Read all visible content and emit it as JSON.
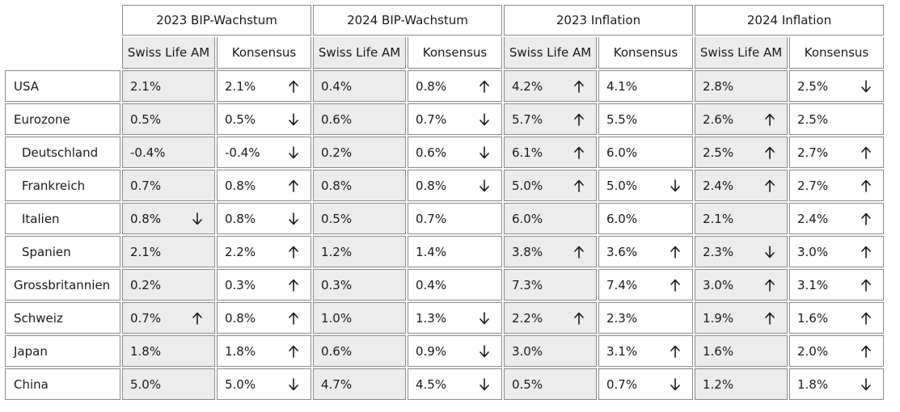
{
  "groups": [
    "2023 BIP-Wachstum",
    "2024 BIP-Wachstum",
    "2023 Inflation",
    "2024 Inflation"
  ],
  "subheaders": [
    "Swiss Life AM",
    "Konsensus"
  ],
  "rows": [
    {
      "label": "USA",
      "indent": false,
      "cells": [
        {
          "v": "2.1%",
          "a": ""
        },
        {
          "v": "2.1%",
          "a": "up"
        },
        {
          "v": "0.4%",
          "a": ""
        },
        {
          "v": "0.8%",
          "a": "up"
        },
        {
          "v": "4.2%",
          "a": "up"
        },
        {
          "v": "4.1%",
          "a": ""
        },
        {
          "v": "2.8%",
          "a": ""
        },
        {
          "v": "2.5%",
          "a": "down"
        }
      ]
    },
    {
      "label": "Eurozone",
      "indent": false,
      "cells": [
        {
          "v": "0.5%",
          "a": ""
        },
        {
          "v": "0.5%",
          "a": "down"
        },
        {
          "v": "0.6%",
          "a": ""
        },
        {
          "v": "0.7%",
          "a": "down"
        },
        {
          "v": "5.7%",
          "a": "up"
        },
        {
          "v": "5.5%",
          "a": ""
        },
        {
          "v": "2.6%",
          "a": "up"
        },
        {
          "v": "2.5%",
          "a": ""
        }
      ]
    },
    {
      "label": "Deutschland",
      "indent": true,
      "cells": [
        {
          "v": "-0.4%",
          "a": ""
        },
        {
          "v": "-0.4%",
          "a": "down"
        },
        {
          "v": "0.2%",
          "a": ""
        },
        {
          "v": "0.6%",
          "a": "down"
        },
        {
          "v": "6.1%",
          "a": "up"
        },
        {
          "v": "6.0%",
          "a": ""
        },
        {
          "v": "2.5%",
          "a": "up"
        },
        {
          "v": "2.7%",
          "a": "up"
        }
      ]
    },
    {
      "label": "Frankreich",
      "indent": true,
      "cells": [
        {
          "v": "0.7%",
          "a": ""
        },
        {
          "v": "0.8%",
          "a": "up"
        },
        {
          "v": "0.8%",
          "a": ""
        },
        {
          "v": "0.8%",
          "a": "down"
        },
        {
          "v": "5.0%",
          "a": "up"
        },
        {
          "v": "5.0%",
          "a": "down"
        },
        {
          "v": "2.4%",
          "a": "up"
        },
        {
          "v": "2.7%",
          "a": "up"
        }
      ]
    },
    {
      "label": "Italien",
      "indent": true,
      "cells": [
        {
          "v": "0.8%",
          "a": "down"
        },
        {
          "v": "0.8%",
          "a": "down"
        },
        {
          "v": "0.5%",
          "a": ""
        },
        {
          "v": "0.7%",
          "a": ""
        },
        {
          "v": "6.0%",
          "a": ""
        },
        {
          "v": "6.0%",
          "a": ""
        },
        {
          "v": "2.1%",
          "a": ""
        },
        {
          "v": "2.4%",
          "a": "up"
        }
      ]
    },
    {
      "label": "Spanien",
      "indent": true,
      "cells": [
        {
          "v": "2.1%",
          "a": ""
        },
        {
          "v": "2.2%",
          "a": "up"
        },
        {
          "v": "1.2%",
          "a": ""
        },
        {
          "v": "1.4%",
          "a": ""
        },
        {
          "v": "3.8%",
          "a": "up"
        },
        {
          "v": "3.6%",
          "a": "up"
        },
        {
          "v": "2.3%",
          "a": "down"
        },
        {
          "v": "3.0%",
          "a": "up"
        }
      ]
    },
    {
      "label": "Grossbritannien",
      "indent": false,
      "cells": [
        {
          "v": "0.2%",
          "a": ""
        },
        {
          "v": "0.3%",
          "a": "up"
        },
        {
          "v": "0.3%",
          "a": ""
        },
        {
          "v": "0.4%",
          "a": ""
        },
        {
          "v": "7.3%",
          "a": ""
        },
        {
          "v": "7.4%",
          "a": "up"
        },
        {
          "v": "3.0%",
          "a": "up"
        },
        {
          "v": "3.1%",
          "a": "up"
        }
      ]
    },
    {
      "label": "Schweiz",
      "indent": false,
      "cells": [
        {
          "v": "0.7%",
          "a": "up"
        },
        {
          "v": "0.8%",
          "a": "up"
        },
        {
          "v": "1.0%",
          "a": ""
        },
        {
          "v": "1.3%",
          "a": "down"
        },
        {
          "v": "2.2%",
          "a": "up"
        },
        {
          "v": "2.3%",
          "a": ""
        },
        {
          "v": "1.9%",
          "a": "up"
        },
        {
          "v": "1.6%",
          "a": "up"
        }
      ]
    },
    {
      "label": "Japan",
      "indent": false,
      "cells": [
        {
          "v": "1.8%",
          "a": ""
        },
        {
          "v": "1.8%",
          "a": "up"
        },
        {
          "v": "0.6%",
          "a": ""
        },
        {
          "v": "0.9%",
          "a": "down"
        },
        {
          "v": "3.0%",
          "a": ""
        },
        {
          "v": "3.1%",
          "a": "up"
        },
        {
          "v": "1.6%",
          "a": ""
        },
        {
          "v": "2.0%",
          "a": "up"
        }
      ]
    },
    {
      "label": "China",
      "indent": false,
      "cells": [
        {
          "v": "5.0%",
          "a": ""
        },
        {
          "v": "5.0%",
          "a": "down"
        },
        {
          "v": "4.7%",
          "a": ""
        },
        {
          "v": "4.5%",
          "a": "down"
        },
        {
          "v": "0.5%",
          "a": ""
        },
        {
          "v": "0.7%",
          "a": "down"
        },
        {
          "v": "1.2%",
          "a": ""
        },
        {
          "v": "1.8%",
          "a": "down"
        }
      ]
    }
  ]
}
